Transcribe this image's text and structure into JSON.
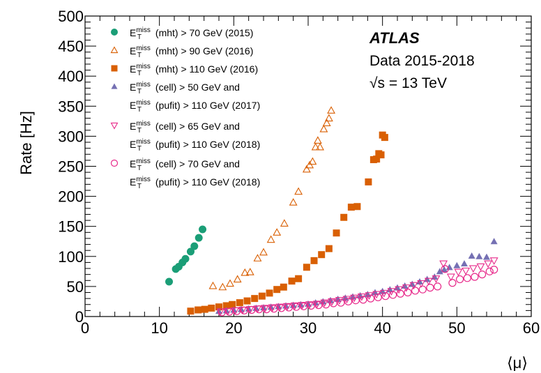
{
  "chart_data": {
    "type": "scatter",
    "title": "",
    "xlabel": "⟨μ⟩",
    "ylabel": "Rate [Hz]",
    "xlim": [
      0,
      60
    ],
    "ylim": [
      0,
      500
    ],
    "xticks": [
      0,
      10,
      20,
      30,
      40,
      50,
      60
    ],
    "xtick_labels": [
      "0",
      "10",
      "20",
      "30",
      "40",
      "50",
      "60"
    ],
    "yticks": [
      0,
      50,
      100,
      150,
      200,
      250,
      300,
      350,
      400,
      450,
      500
    ],
    "ytick_labels": [
      "0",
      "50",
      "100",
      "150",
      "200",
      "250",
      "300",
      "350",
      "400",
      "450",
      "500"
    ],
    "legend_placement": "top-left",
    "annotations": {
      "experiment": "ATLAS",
      "dataset": "Data 2015-2018",
      "energy": "√s = 13 TeV"
    },
    "series": [
      {
        "legend_main": "E",
        "legend_sup": "miss",
        "legend_sub": "T",
        "legend_line1": "(mht) > 70 GeV (2015)",
        "legend_line2": "",
        "marker": "circle-filled",
        "color": "#1b9e77",
        "points": [
          [
            11.3,
            58
          ],
          [
            12.2,
            79
          ],
          [
            12.6,
            83
          ],
          [
            13.1,
            90
          ],
          [
            13.5,
            96
          ],
          [
            14.2,
            108
          ],
          [
            14.7,
            117
          ],
          [
            15.3,
            131
          ],
          [
            15.8,
            145
          ]
        ]
      },
      {
        "legend_main": "E",
        "legend_sup": "miss",
        "legend_sub": "T",
        "legend_line1": "(mht) > 90 GeV (2016)",
        "legend_line2": "",
        "marker": "triangle-up-open",
        "color": "#d95f02",
        "points": [
          [
            17.2,
            51
          ],
          [
            18.5,
            49
          ],
          [
            19.5,
            55
          ],
          [
            20.5,
            62
          ],
          [
            21.5,
            73
          ],
          [
            22.2,
            74
          ],
          [
            23.2,
            97
          ],
          [
            24,
            107
          ],
          [
            25,
            128
          ],
          [
            25.8,
            140
          ],
          [
            26.8,
            155
          ],
          [
            28,
            190
          ],
          [
            28.7,
            208
          ],
          [
            29.8,
            245
          ],
          [
            30.2,
            252
          ],
          [
            30.6,
            258
          ],
          [
            31,
            282
          ],
          [
            31.3,
            293
          ],
          [
            31.6,
            282
          ],
          [
            32.1,
            312
          ],
          [
            32.5,
            322
          ],
          [
            32.8,
            330
          ],
          [
            33.1,
            343
          ]
        ]
      },
      {
        "legend_main": "E",
        "legend_sup": "miss",
        "legend_sub": "T",
        "legend_line1": "(mht) > 110 GeV (2016)",
        "legend_line2": "",
        "marker": "square-filled",
        "color": "#d95f02",
        "points": [
          [
            14.2,
            9
          ],
          [
            15.2,
            11
          ],
          [
            16.1,
            12
          ],
          [
            17,
            14
          ],
          [
            18,
            16
          ],
          [
            19,
            18
          ],
          [
            19.8,
            20
          ],
          [
            20.8,
            23
          ],
          [
            21.8,
            26
          ],
          [
            22.8,
            30
          ],
          [
            23.8,
            34
          ],
          [
            24.8,
            39
          ],
          [
            25.8,
            45
          ],
          [
            26.7,
            49
          ],
          [
            27.8,
            59
          ],
          [
            28.7,
            63
          ],
          [
            29.8,
            82
          ],
          [
            30.8,
            93
          ],
          [
            31.8,
            103
          ],
          [
            32.8,
            113
          ],
          [
            33.8,
            139
          ],
          [
            34.8,
            165
          ],
          [
            35.8,
            182
          ],
          [
            36.6,
            183
          ],
          [
            38.1,
            224
          ],
          [
            38.8,
            261
          ],
          [
            39.2,
            262
          ],
          [
            39.5,
            271
          ],
          [
            39.8,
            269
          ],
          [
            40,
            302
          ],
          [
            40.3,
            298
          ]
        ]
      },
      {
        "legend_main": "E",
        "legend_sup": "miss",
        "legend_sub": "T",
        "legend_line1": "(cell) > 50 GeV and",
        "legend_line2": "(pufit) > 110 GeV (2017)",
        "marker": "triangle-up-filled",
        "color": "#7570b3",
        "points": [
          [
            18,
            9
          ],
          [
            19,
            10
          ],
          [
            20,
            11
          ],
          [
            21,
            12
          ],
          [
            22,
            13
          ],
          [
            23,
            14
          ],
          [
            24,
            15
          ],
          [
            25,
            16
          ],
          [
            26,
            17
          ],
          [
            27,
            18
          ],
          [
            28,
            19
          ],
          [
            29,
            20
          ],
          [
            30,
            21
          ],
          [
            31,
            23
          ],
          [
            32,
            25
          ],
          [
            33,
            27
          ],
          [
            34,
            29
          ],
          [
            35,
            31
          ],
          [
            36,
            33
          ],
          [
            37,
            35
          ],
          [
            38,
            37
          ],
          [
            39,
            40
          ],
          [
            40,
            42
          ],
          [
            41,
            45
          ],
          [
            42,
            48
          ],
          [
            43,
            51
          ],
          [
            44,
            54
          ],
          [
            45,
            58
          ],
          [
            46,
            62
          ],
          [
            47,
            66
          ],
          [
            47.7,
            75
          ],
          [
            48.3,
            78
          ],
          [
            49,
            82
          ],
          [
            50,
            85
          ],
          [
            51,
            88
          ],
          [
            52,
            101
          ],
          [
            53,
            100
          ],
          [
            54,
            99
          ],
          [
            55,
            125
          ]
        ]
      },
      {
        "legend_main": "E",
        "legend_sup": "miss",
        "legend_sub": "T",
        "legend_line1": "(cell) > 65 GeV and",
        "legend_line2": "(pufit) > 110 GeV (2018)",
        "marker": "triangle-down-open",
        "color": "#e7298a",
        "points": [
          [
            18.2,
            8
          ],
          [
            19.2,
            9
          ],
          [
            20.2,
            10
          ],
          [
            21.2,
            11
          ],
          [
            22.2,
            12
          ],
          [
            23.2,
            13
          ],
          [
            24.2,
            14
          ],
          [
            25.2,
            15
          ],
          [
            26.2,
            16
          ],
          [
            27.2,
            17
          ],
          [
            28.2,
            18
          ],
          [
            29.2,
            19
          ],
          [
            30.2,
            20
          ],
          [
            31.2,
            21
          ],
          [
            32.2,
            23
          ],
          [
            33.2,
            25
          ],
          [
            34.2,
            27
          ],
          [
            35.2,
            29
          ],
          [
            36.2,
            31
          ],
          [
            37.2,
            33
          ],
          [
            38.2,
            35
          ],
          [
            39.2,
            37
          ],
          [
            40.2,
            39
          ],
          [
            41.2,
            42
          ],
          [
            42.2,
            45
          ],
          [
            43.2,
            48
          ],
          [
            44.2,
            52
          ],
          [
            45.2,
            55
          ],
          [
            46.2,
            59
          ],
          [
            47.2,
            63
          ],
          [
            48.2,
            88
          ],
          [
            49.2,
            66
          ],
          [
            50.2,
            74
          ],
          [
            51.2,
            76
          ],
          [
            52.2,
            80
          ],
          [
            53.2,
            83
          ],
          [
            54.2,
            88
          ],
          [
            55,
            93
          ]
        ]
      },
      {
        "legend_main": "E",
        "legend_sup": "miss",
        "legend_sub": "T",
        "legend_line1": "(cell) > 70 GeV and",
        "legend_line2": "(pufit) > 110 GeV (2018)",
        "marker": "circle-open",
        "color": "#e7298a",
        "points": [
          [
            18.4,
            7
          ],
          [
            19.4,
            8
          ],
          [
            20.4,
            9
          ],
          [
            21.4,
            10
          ],
          [
            22.4,
            11
          ],
          [
            23.4,
            12
          ],
          [
            24.4,
            12
          ],
          [
            25.4,
            13
          ],
          [
            26.4,
            14
          ],
          [
            27.4,
            15
          ],
          [
            28.4,
            16
          ],
          [
            29.4,
            17
          ],
          [
            30.4,
            18
          ],
          [
            31.4,
            19
          ],
          [
            32.4,
            20
          ],
          [
            33.4,
            22
          ],
          [
            34.4,
            23
          ],
          [
            35.4,
            25
          ],
          [
            36.4,
            27
          ],
          [
            37.4,
            28
          ],
          [
            38.4,
            30
          ],
          [
            39.4,
            32
          ],
          [
            40.4,
            34
          ],
          [
            41.4,
            36
          ],
          [
            42.4,
            38
          ],
          [
            43.4,
            40
          ],
          [
            44.4,
            43
          ],
          [
            45.4,
            45
          ],
          [
            46.4,
            48
          ],
          [
            47.4,
            50
          ],
          [
            48.4,
            79
          ],
          [
            49.4,
            56
          ],
          [
            50.4,
            62
          ],
          [
            51.4,
            64
          ],
          [
            52.4,
            66
          ],
          [
            53.4,
            70
          ],
          [
            54.4,
            75
          ],
          [
            55,
            78
          ]
        ]
      }
    ]
  }
}
